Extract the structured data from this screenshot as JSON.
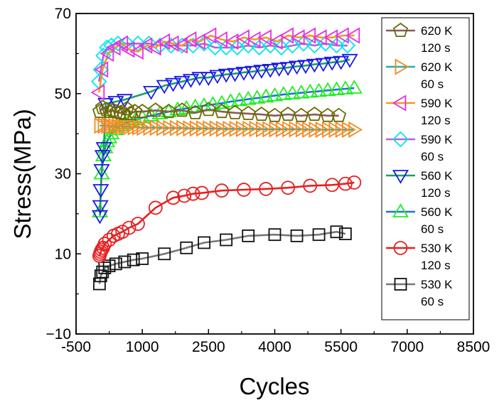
{
  "chart_data": {
    "type": "line",
    "title": "",
    "xlabel": "Cycles",
    "ylabel": "Stress(MPa)",
    "xlim": [
      -500,
      8500
    ],
    "ylim": [
      -10,
      70
    ],
    "xticks": [
      -500,
      1000,
      2500,
      4000,
      5500,
      7000,
      8500
    ],
    "yticks": [
      -10,
      10,
      30,
      50,
      70
    ],
    "xtick_labels": [
      "-500",
      "1000",
      "2500",
      "4000",
      "5500",
      "7000",
      "8500"
    ],
    "ytick_labels": [
      "−10",
      "10",
      "30",
      "50",
      "70"
    ],
    "grid": false,
    "legend_position": "right",
    "series": [
      {
        "name": "620 K 120 s",
        "label_line1": "620 K",
        "label_line2": "120 s",
        "marker": "pentagon",
        "marker_color": "#6b6b00",
        "line_color": "#8b5a5a",
        "x": [
          40,
          100,
          180,
          260,
          340,
          420,
          500,
          580,
          650,
          730,
          830,
          1000,
          1300,
          1600,
          1900,
          2200,
          2500,
          2800,
          3100,
          3400,
          3700,
          4000,
          4300,
          4600,
          4900,
          5200,
          5450
        ],
        "y": [
          45.5,
          46.5,
          46.0,
          45.5,
          45.8,
          45.4,
          45.2,
          45.0,
          46.2,
          45.0,
          45.5,
          45.5,
          45.8,
          45.5,
          45.8,
          45.2,
          46.0,
          45.5,
          45.2,
          45.0,
          44.8,
          44.5,
          44.8,
          44.5,
          44.8,
          44.5,
          44.5
        ]
      },
      {
        "name": "620 K 60 s",
        "label_line1": "620 K",
        "label_line2": "60 s",
        "marker": "triangle-right",
        "marker_color": "#f5881f",
        "line_color": "#20b2aa",
        "x": [
          40,
          120,
          200,
          280,
          360,
          440,
          520,
          600,
          700,
          800,
          900,
          1000,
          1150,
          1300,
          1450,
          1600,
          1750,
          1900,
          2050,
          2200,
          2350,
          2500,
          2650,
          2800,
          2950,
          3100,
          3250,
          3400,
          3550,
          3700,
          3850,
          4000,
          4150,
          4300,
          4450,
          4600,
          4750,
          4900,
          5050,
          5200,
          5350,
          5500,
          5650,
          5800
        ],
        "y": [
          42.0,
          42.0,
          42.0,
          41.9,
          41.9,
          41.8,
          41.8,
          41.7,
          41.7,
          41.6,
          41.6,
          41.5,
          41.5,
          41.5,
          41.4,
          41.4,
          41.4,
          41.4,
          41.3,
          41.3,
          41.3,
          41.3,
          41.3,
          41.2,
          41.2,
          41.2,
          41.2,
          41.2,
          41.2,
          41.1,
          41.1,
          41.1,
          41.1,
          41.1,
          41.1,
          41.1,
          41.0,
          41.0,
          41.0,
          41.0,
          41.0,
          41.0,
          41.0,
          41.0
        ]
      },
      {
        "name": "590 K 120 s",
        "label_line1": "590 K",
        "label_line2": "120 s",
        "marker": "triangle-left",
        "marker_color": "#e62ee6",
        "line_color": "#f29b1d",
        "x": [
          20,
          100,
          230,
          380,
          550,
          700,
          900,
          1100,
          1300,
          1500,
          1700,
          1900,
          2100,
          2300,
          2550,
          2800,
          3050,
          3300,
          3550,
          3800,
          4050,
          4300,
          4550,
          4800,
          5050,
          5300,
          5550,
          5800
        ],
        "y": [
          50.3,
          56.0,
          60.0,
          61.5,
          62.5,
          61.0,
          60.5,
          62.0,
          61.5,
          63.0,
          62.5,
          62.0,
          63.5,
          63.0,
          64.5,
          63.5,
          63.0,
          64.0,
          63.5,
          64.0,
          63.0,
          64.5,
          64.0,
          64.5,
          64.0,
          64.0,
          64.5,
          64.5
        ]
      },
      {
        "name": "590 K 60 s",
        "label_line1": "590 K",
        "label_line2": "60 s",
        "marker": "diamond",
        "marker_color": "#00e5ee",
        "line_color": "#b266cc",
        "x": [
          20,
          60,
          120,
          200,
          300,
          450,
          650,
          900,
          1150,
          1400,
          1650,
          1900,
          2150,
          2400,
          2650,
          2900,
          3150,
          3400,
          3650,
          3900,
          4150,
          4400,
          4650,
          4900,
          5150,
          5400,
          5650
        ],
        "y": [
          53.0,
          56.0,
          59.5,
          61.5,
          62.0,
          62.5,
          62.5,
          62.5,
          62.5,
          62.0,
          62.0,
          62.0,
          62.0,
          62.5,
          61.5,
          61.5,
          61.5,
          62.0,
          61.5,
          62.0,
          61.5,
          62.0,
          62.5,
          62.0,
          62.5,
          62.0,
          62.0
        ]
      },
      {
        "name": "560 K 120 s",
        "label_line1": "560 K",
        "label_line2": "120 s",
        "marker": "triangle-down",
        "marker_color": "#1a1ae6",
        "line_color": "#1aa06b",
        "x": [
          40,
          50,
          60,
          80,
          100,
          130,
          170,
          400,
          600,
          1200,
          1500,
          1700,
          1900,
          2100,
          2300,
          2500,
          2700,
          2900,
          3100,
          3300,
          3500,
          3700,
          3900,
          4100,
          4300,
          4500,
          4700,
          4900,
          5100,
          5300,
          5500,
          5700
        ],
        "y": [
          19.5,
          22.0,
          26.0,
          31.0,
          34.5,
          36.5,
          47.5,
          48.0,
          48.5,
          50.5,
          52.0,
          52.5,
          53.0,
          53.5,
          54.0,
          54.0,
          54.5,
          54.8,
          55.0,
          55.3,
          55.5,
          55.8,
          56.0,
          56.3,
          56.5,
          56.8,
          57.0,
          57.3,
          57.5,
          57.8,
          58.0,
          58.5
        ]
      },
      {
        "name": "560 K 60 s",
        "label_line1": "560 K",
        "label_line2": "60 s",
        "marker": "triangle-up",
        "marker_color": "#22ee22",
        "line_color": "#1e73d8",
        "x": [
          40,
          80,
          120,
          160,
          200,
          250,
          300,
          400,
          500,
          600,
          700,
          850,
          1000,
          1200,
          1400,
          1600,
          1800,
          2000,
          2200,
          2400,
          2600,
          2800,
          3000,
          3200,
          3400,
          3600,
          3800,
          4000,
          4200,
          4400,
          4600,
          4800,
          5000,
          5200,
          5400,
          5600,
          5800
        ],
        "y": [
          20.5,
          30.0,
          34.5,
          36.5,
          38.0,
          39.0,
          40.0,
          41.0,
          42.0,
          42.5,
          43.0,
          43.5,
          44.0,
          44.5,
          45.0,
          45.5,
          46.0,
          46.3,
          46.7,
          47.0,
          47.3,
          47.6,
          48.0,
          48.3,
          48.6,
          48.9,
          49.2,
          49.5,
          49.8,
          50.0,
          50.2,
          50.4,
          50.6,
          50.8,
          51.0,
          51.2,
          51.4
        ]
      },
      {
        "name": "530 K 120 s",
        "label_line1": "530 K",
        "label_line2": "120 s",
        "marker": "circle",
        "marker_color": "#e62020",
        "line_color": "#e62020",
        "x": [
          30,
          45,
          60,
          80,
          110,
          150,
          250,
          350,
          450,
          550,
          700,
          900,
          1300,
          1700,
          1950,
          2150,
          2350,
          2800,
          3300,
          3800,
          4300,
          4800,
          5300,
          5600,
          5800
        ],
        "y": [
          9.5,
          10.0,
          10.5,
          11.0,
          11.5,
          12.5,
          13.5,
          14.5,
          15.0,
          15.5,
          16.5,
          17.5,
          21.5,
          24.0,
          24.5,
          25.0,
          25.2,
          25.8,
          26.0,
          26.2,
          26.5,
          27.0,
          27.2,
          27.5,
          27.8
        ]
      },
      {
        "name": "530 K 60 s",
        "label_line1": "530 K",
        "label_line2": "60 s",
        "marker": "square",
        "marker_color": "#111111",
        "line_color": "#777777",
        "x": [
          30,
          60,
          100,
          150,
          250,
          400,
          600,
          800,
          1000,
          1500,
          2000,
          2400,
          2900,
          3400,
          4000,
          4500,
          5000,
          5400,
          5600
        ],
        "y": [
          2.5,
          4.5,
          5.5,
          6.5,
          7.0,
          7.5,
          8.0,
          8.5,
          8.8,
          10.0,
          11.5,
          12.8,
          13.5,
          14.5,
          14.8,
          14.5,
          14.8,
          15.5,
          15.0
        ]
      }
    ]
  }
}
